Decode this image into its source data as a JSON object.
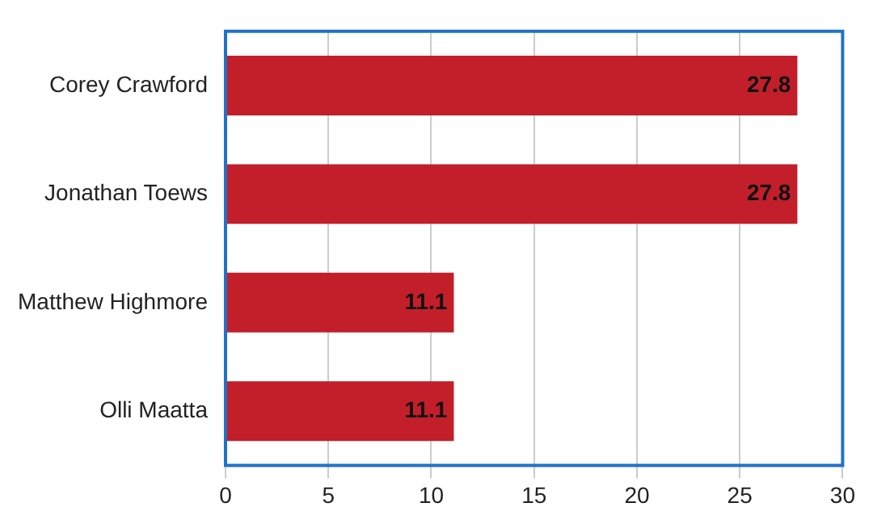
{
  "chart_data": {
    "type": "bar",
    "orientation": "horizontal",
    "categories": [
      "Corey Crawford",
      "Jonathan Toews",
      "Matthew Highmore",
      "Olli Maatta"
    ],
    "values": [
      27.8,
      27.8,
      11.1,
      11.1
    ],
    "color": "#c21f2a",
    "xlim": [
      0,
      30
    ],
    "xticks": [
      0,
      5,
      10,
      15,
      20,
      25,
      30
    ],
    "grid": "x",
    "data_labels": true
  }
}
